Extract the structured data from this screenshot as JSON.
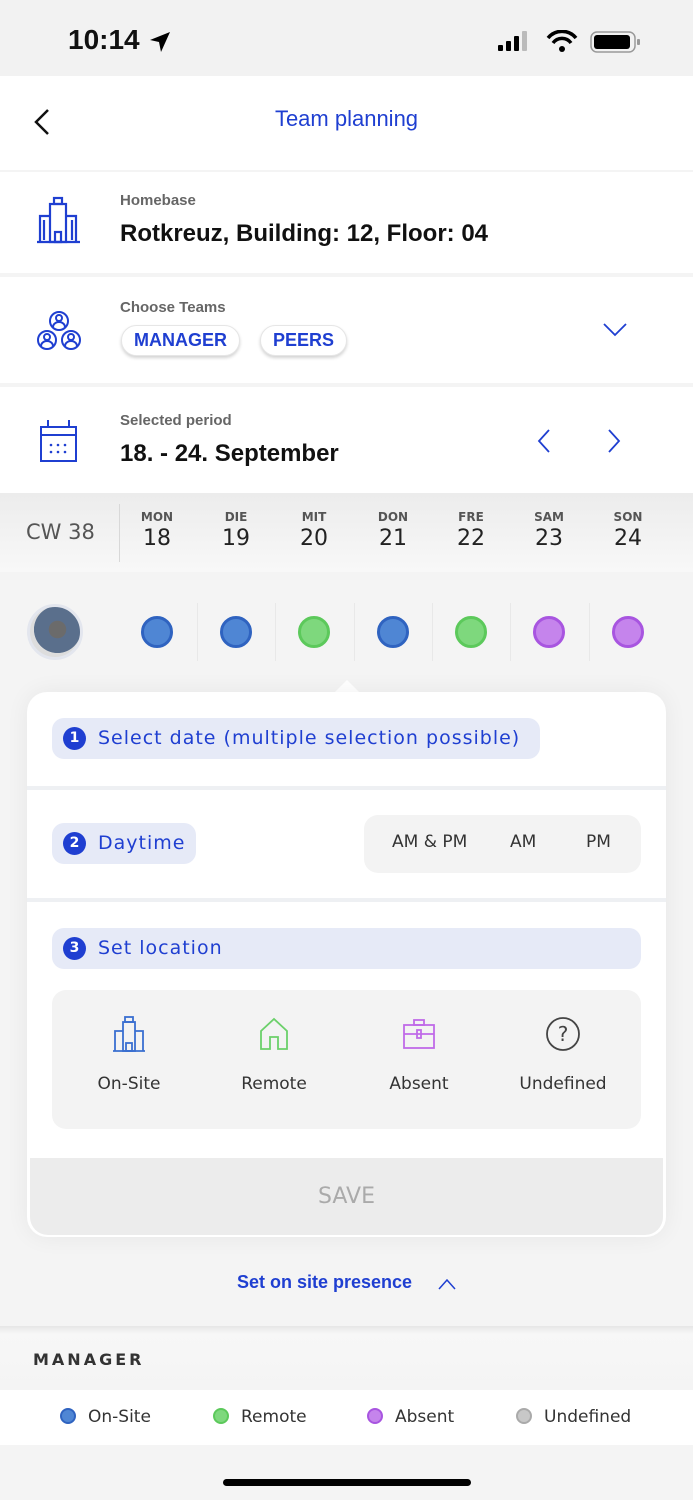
{
  "status_bar": {
    "time": "10:14"
  },
  "header": {
    "title": "Team planning"
  },
  "homebase": {
    "label": "Homebase",
    "value": "Rotkreuz, Building: 12, Floor: 04"
  },
  "teams": {
    "label": "Choose Teams",
    "chips": [
      "MANAGER",
      "PEERS"
    ]
  },
  "period": {
    "label": "Selected period",
    "value": "18. - 24. September"
  },
  "week": {
    "cw": "CW 38",
    "days": [
      {
        "name": "MON",
        "date": "18"
      },
      {
        "name": "DIE",
        "date": "19"
      },
      {
        "name": "MIT",
        "date": "20"
      },
      {
        "name": "DON",
        "date": "21"
      },
      {
        "name": "FRE",
        "date": "22"
      },
      {
        "name": "SAM",
        "date": "23"
      },
      {
        "name": "SON",
        "date": "24"
      }
    ]
  },
  "colors": {
    "on_site": "#4f86d4",
    "remote": "#7ed87d",
    "absent": "#c584ec",
    "undefined": "#c8c8c8",
    "accent": "#1f3fd1"
  },
  "statuses": [
    "on_site",
    "on_site",
    "remote",
    "on_site",
    "remote",
    "absent",
    "absent"
  ],
  "steps": {
    "s1": {
      "num": "1",
      "label": "Select date (multiple selection possible)"
    },
    "s2": {
      "num": "2",
      "label": "Daytime"
    },
    "s3": {
      "num": "3",
      "label": "Set location"
    }
  },
  "daytime_options": [
    "AM & PM",
    "AM",
    "PM"
  ],
  "locations": [
    "On-Site",
    "Remote",
    "Absent",
    "Undefined"
  ],
  "save_label": "SAVE",
  "presence_link": "Set on site presence",
  "group_header": "MANAGER",
  "legend": [
    "On-Site",
    "Remote",
    "Absent",
    "Undefined"
  ]
}
